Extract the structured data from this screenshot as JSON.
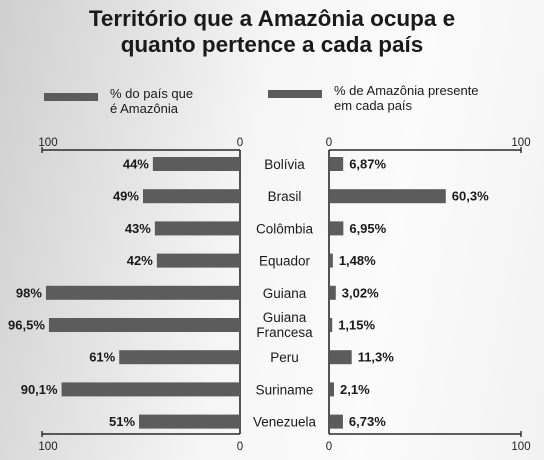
{
  "title_line1": "Território que a Amazônia ocupa e",
  "title_line2": "quanto pertence a cada país",
  "colors": {
    "bar": "#5c5c5c",
    "axis": "#2a2a2a"
  },
  "chart_data": {
    "type": "bar",
    "title": "Território que a Amazônia ocupa e quanto pertence a cada país",
    "categories": [
      [
        "Bolívia"
      ],
      [
        "Brasil"
      ],
      [
        "Colômbia"
      ],
      [
        "Equador"
      ],
      [
        "Guiana"
      ],
      [
        "Guiana",
        "Francesa"
      ],
      [
        "Peru"
      ],
      [
        "Suriname"
      ],
      [
        "Venezuela"
      ]
    ],
    "series": [
      {
        "name": "% do país que é Amazônia",
        "legend_lines": [
          "% do país que",
          "é Amazônia"
        ],
        "values": [
          44,
          49,
          43,
          42,
          98,
          96.5,
          61,
          90.1,
          51
        ],
        "labels": [
          "44%",
          "49%",
          "43%",
          "42%",
          "98%",
          "96,5%",
          "61%",
          "90,1%",
          "51%"
        ]
      },
      {
        "name": "% de Amazônia presente em cada país",
        "legend_lines": [
          "% de Amazônia presente",
          "em cada país"
        ],
        "values": [
          6.87,
          60.3,
          6.95,
          1.48,
          3.02,
          1.15,
          11.3,
          2.1,
          6.73
        ],
        "labels": [
          "6,87%",
          "60,3%",
          "6,95%",
          "1,48%",
          "3,02%",
          "1,15%",
          "11,3%",
          "2,1%",
          "6,73%"
        ]
      }
    ],
    "left_axis": {
      "range": [
        0,
        100
      ],
      "ticks": [
        "100",
        "0"
      ],
      "direction": "reversed"
    },
    "right_axis": {
      "range": [
        0,
        100
      ],
      "ticks": [
        "0",
        "100"
      ]
    }
  }
}
